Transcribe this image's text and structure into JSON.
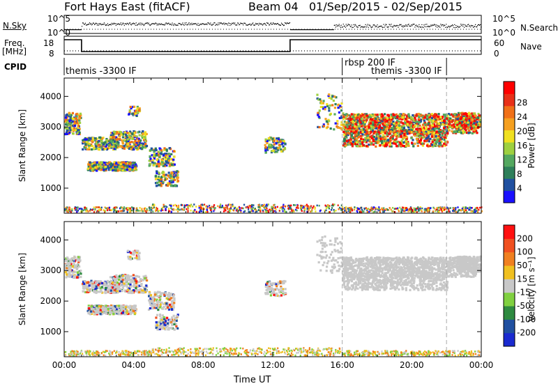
{
  "header": {
    "title": "Fort Hays East (fitACF)",
    "beam": "Beam 04",
    "date_range": "01/Sep/2015 - 02/Sep/2015"
  },
  "top_panels": {
    "nsky_label": "N.Sky",
    "nsky_ticks": [
      "10^5",
      "10^0"
    ],
    "nsearch_label": "N.Search",
    "nsearch_ticks": [
      "10^5",
      "10^0"
    ],
    "freq_label": "Freq.",
    "freq_unit": "[MHz]",
    "freq_ticks": [
      18,
      8
    ],
    "nave_label": "Nave",
    "nave_ticks": [
      60,
      0
    ],
    "cpid_label": "CPID",
    "cpid_segments": [
      {
        "label": "themis -3300 IF",
        "start": 0,
        "end": 16
      },
      {
        "label": "rbsp 200 IF",
        "start": 16,
        "end": 22
      },
      {
        "label": "themis -3300 IF",
        "start": 17.5,
        "end": 22
      }
    ],
    "freq_trace": [
      [
        0,
        18
      ],
      [
        1,
        18
      ],
      [
        1,
        9.5
      ],
      [
        13,
        9.5
      ],
      [
        13,
        18
      ],
      [
        24,
        18
      ]
    ]
  },
  "chart_data": [
    {
      "type": "heatmap",
      "name": "power",
      "ylabel": "Slant Range [km]",
      "yticks": [
        1000,
        2000,
        3000,
        4000
      ],
      "ylim": [
        180,
        4600
      ],
      "xlim": [
        0,
        24
      ],
      "colorbar": {
        "label": "Power [dB]",
        "ticks": [
          4,
          8,
          12,
          16,
          20,
          24,
          28
        ],
        "colors": [
          "#1a10ff",
          "#2050a0",
          "#2e7f5a",
          "#54a860",
          "#9ed040",
          "#f0e020",
          "#f5a020",
          "#f07018",
          "#e83018",
          "#ff0000"
        ]
      }
    },
    {
      "type": "heatmap",
      "name": "velocity",
      "ylabel": "Slant Range [km]",
      "yticks": [
        1000,
        2000,
        3000,
        4000
      ],
      "ylim": [
        180,
        4600
      ],
      "xlim": [
        0,
        24
      ],
      "xticks": [
        "00:00",
        "04:00",
        "08:00",
        "12:00",
        "16:00",
        "20:00",
        "00:00"
      ],
      "xlabel": "Time UT",
      "colorbar": {
        "label": "Velocity [m s⁻¹]",
        "ticks": [
          200,
          100,
          50,
          15,
          -15,
          -50,
          -100,
          -200
        ],
        "colors": [
          "#1a2ad0",
          "#2050a0",
          "#2e8a40",
          "#80d040",
          "#c8c8c8",
          "#f0c020",
          "#f08020",
          "#f05020",
          "#ff1010"
        ]
      }
    }
  ]
}
